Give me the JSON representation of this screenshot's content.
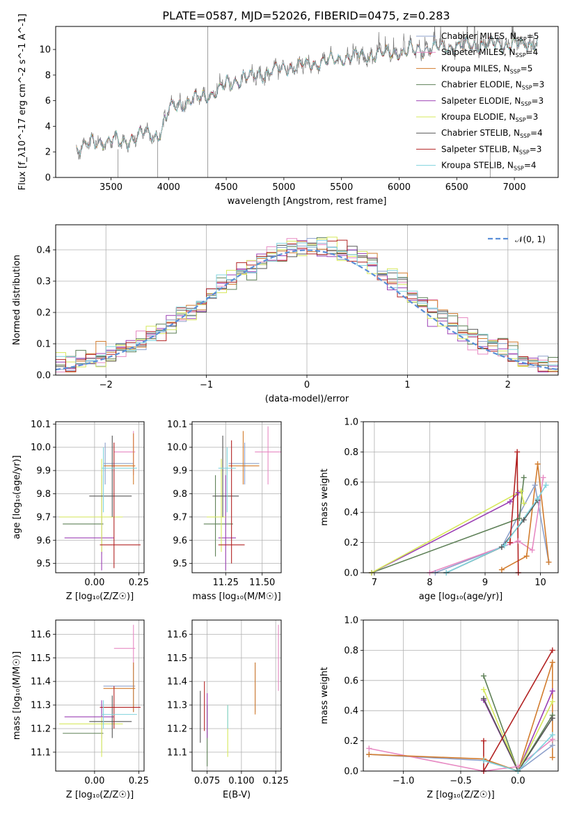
{
  "page_title": "PLATE=0587, MJD=52026, FIBERID=0475, z=0.283",
  "colors": {
    "Chabrier MILES": "#8da0cb",
    "Salpeter MILES": "#e78ac3",
    "Kroupa MILES": "#d27c2e",
    "Chabrier ELODIE": "#5e8057",
    "Salpeter ELODIE": "#9b3fb4",
    "Kroupa ELODIE": "#d6e85a",
    "Chabrier STELIB": "#555555",
    "Salpeter STELIB": "#b22222",
    "Kroupa STELIB": "#7fd3dd",
    "data": "#777777",
    "normal": "#5b8fd8"
  },
  "chart_data": [
    {
      "id": "spectrum",
      "type": "line",
      "title": "PLATE=0587, MJD=52026, FIBERID=0475, z=0.283",
      "xlabel": "wavelength [Angstrom, rest frame]",
      "ylabel": "Flux [f_λ10^-17 erg cm^-2 s^-1 A^-1]",
      "xlim": [
        3020,
        7380
      ],
      "ylim": [
        0,
        11.8
      ],
      "xticks": [
        3500,
        4000,
        4500,
        5000,
        5500,
        6000,
        6500,
        7000
      ],
      "yticks": [
        0,
        2,
        4,
        6,
        8,
        10
      ],
      "legend_position": "right",
      "legend": [
        {
          "name": "Chabrier MILES",
          "nssp": "5"
        },
        {
          "name": "Salpeter MILES",
          "nssp": "4"
        },
        {
          "name": "Kroupa MILES",
          "nssp": "5"
        },
        {
          "name": "Chabrier ELODIE",
          "nssp": "3"
        },
        {
          "name": "Salpeter ELODIE",
          "nssp": "3"
        },
        {
          "name": "Kroupa ELODIE",
          "nssp": "3"
        },
        {
          "name": "Chabrier STELIB",
          "nssp": "4"
        },
        {
          "name": "Salpeter STELIB",
          "nssp": "3"
        },
        {
          "name": "Kroupa STELIB",
          "nssp": "4"
        }
      ],
      "continuum": [
        [
          3200,
          2.2
        ],
        [
          3300,
          2.6
        ],
        [
          3400,
          2.8
        ],
        [
          3500,
          2.9
        ],
        [
          3600,
          2.8
        ],
        [
          3700,
          3.1
        ],
        [
          3800,
          3.4
        ],
        [
          3900,
          3.2
        ],
        [
          3950,
          4.0
        ],
        [
          4000,
          5.3
        ],
        [
          4100,
          5.8
        ],
        [
          4200,
          6.0
        ],
        [
          4300,
          6.3
        ],
        [
          4400,
          6.7
        ],
        [
          4500,
          7.3
        ],
        [
          4600,
          7.6
        ],
        [
          4700,
          7.9
        ],
        [
          4800,
          8.1
        ],
        [
          4900,
          8.3
        ],
        [
          5000,
          8.5
        ],
        [
          5100,
          8.7
        ],
        [
          5200,
          8.8
        ],
        [
          5300,
          9.0
        ],
        [
          5400,
          9.1
        ],
        [
          5500,
          9.3
        ],
        [
          5600,
          9.4
        ],
        [
          5700,
          9.5
        ],
        [
          5800,
          9.6
        ],
        [
          5900,
          9.7
        ],
        [
          6000,
          9.8
        ],
        [
          6200,
          10.0
        ],
        [
          6400,
          10.2
        ],
        [
          6600,
          10.3
        ],
        [
          6800,
          10.4
        ],
        [
          7000,
          10.4
        ],
        [
          7200,
          10.5
        ]
      ]
    },
    {
      "id": "residuals",
      "type": "bar",
      "xlabel": "(data-model)/error",
      "ylabel": "Normed distribution",
      "xlim": [
        -2.5,
        2.5
      ],
      "ylim": [
        0,
        0.48
      ],
      "xticks": [
        -2,
        -1,
        0,
        1,
        2
      ],
      "yticks": [
        0.0,
        0.1,
        0.2,
        0.3,
        0.4
      ],
      "legend": [
        "𝒩(0, 1)"
      ],
      "legend_position": "top-right",
      "bin_width": 0.1
    },
    {
      "id": "age-vs-Z",
      "type": "scatter",
      "xlabel": "Z [log₁₀(Z/Z☉)]",
      "ylabel": "age [log₁₀(age/yr)]",
      "xlim": [
        -0.22,
        0.28
      ],
      "ylim": [
        9.46,
        10.11
      ],
      "xticks": [
        0.0,
        0.25
      ],
      "yticks": [
        9.5,
        9.6,
        9.7,
        9.8,
        9.9,
        10.0,
        10.1
      ],
      "points": [
        {
          "m": "Chabrier MILES",
          "x": 0.06,
          "xe": [
            0.05,
            0.22
          ],
          "y": 9.93,
          "ye": [
            9.84,
            10.02
          ]
        },
        {
          "m": "Salpeter MILES",
          "x": 0.22,
          "xe": [
            0.11,
            0.23
          ],
          "y": 9.98,
          "ye": [
            9.88,
            10.07
          ]
        },
        {
          "m": "Kroupa MILES",
          "x": 0.22,
          "xe": [
            0.05,
            0.23
          ],
          "y": 9.92,
          "ye": [
            9.84,
            10.06
          ]
        },
        {
          "m": "Chabrier ELODIE",
          "x": 0.04,
          "xe": [
            -0.18,
            0.05
          ],
          "y": 9.67,
          "ye": [
            9.54,
            9.88
          ]
        },
        {
          "m": "Salpeter ELODIE",
          "x": 0.04,
          "xe": [
            -0.17,
            0.11
          ],
          "y": 9.61,
          "ye": [
            9.47,
            9.9
          ]
        },
        {
          "m": "Kroupa ELODIE",
          "x": 0.04,
          "xe": [
            -0.2,
            0.16
          ],
          "y": 9.7,
          "ye": [
            9.55,
            9.95
          ]
        },
        {
          "m": "Chabrier STELIB",
          "x": 0.1,
          "xe": [
            -0.03,
            0.21
          ],
          "y": 9.79,
          "ye": [
            9.7,
            10.05
          ]
        },
        {
          "m": "Salpeter STELIB",
          "x": 0.11,
          "xe": [
            0.03,
            0.26
          ],
          "y": 9.58,
          "ye": [
            9.48,
            10.02
          ]
        },
        {
          "m": "Kroupa STELIB",
          "x": 0.05,
          "xe": [
            0.04,
            0.24
          ],
          "y": 9.91,
          "ye": [
            9.72,
            10.0
          ]
        }
      ]
    },
    {
      "id": "age-vs-mass",
      "type": "scatter",
      "xlabel": "mass [log₁₀(M/M☉)]",
      "ylabel": "",
      "xlim": [
        11.02,
        11.63
      ],
      "ylim": [
        9.46,
        10.11
      ],
      "xticks": [
        11.25,
        11.5
      ],
      "yticks": [
        9.5,
        9.6,
        9.7,
        9.8,
        9.9,
        10.0,
        10.1
      ],
      "points": [
        {
          "m": "Chabrier MILES",
          "x": 11.38,
          "xe": [
            11.27,
            11.48
          ],
          "y": 9.93,
          "ye": [
            9.84,
            10.02
          ]
        },
        {
          "m": "Salpeter MILES",
          "x": 11.54,
          "xe": [
            11.45,
            11.63
          ],
          "y": 9.98,
          "ye": [
            9.84,
            10.09
          ]
        },
        {
          "m": "Kroupa MILES",
          "x": 11.37,
          "xe": [
            11.27,
            11.48
          ],
          "y": 9.92,
          "ye": [
            9.84,
            10.07
          ]
        },
        {
          "m": "Chabrier ELODIE",
          "x": 11.18,
          "xe": [
            11.1,
            11.3
          ],
          "y": 9.67,
          "ye": [
            9.53,
            9.88
          ]
        },
        {
          "m": "Salpeter ELODIE",
          "x": 11.25,
          "xe": [
            11.2,
            11.32
          ],
          "y": 9.61,
          "ye": [
            9.47,
            9.88
          ]
        },
        {
          "m": "Kroupa ELODIE",
          "x": 11.22,
          "xe": [
            11.12,
            11.25
          ],
          "y": 9.7,
          "ye": [
            9.55,
            9.95
          ]
        },
        {
          "m": "Chabrier STELIB",
          "x": 11.23,
          "xe": [
            11.16,
            11.34
          ],
          "y": 9.79,
          "ye": [
            9.7,
            10.05
          ]
        },
        {
          "m": "Salpeter STELIB",
          "x": 11.29,
          "xe": [
            11.2,
            11.38
          ],
          "y": 9.58,
          "ye": [
            9.5,
            10.03
          ]
        },
        {
          "m": "Kroupa STELIB",
          "x": 11.26,
          "xe": [
            11.2,
            11.32
          ],
          "y": 9.91,
          "ye": [
            9.72,
            10.0
          ]
        }
      ]
    },
    {
      "id": "weight-vs-age",
      "type": "line",
      "xlabel": "age [log₁₀(age/yr)]",
      "ylabel": "mass weight",
      "xlim": [
        6.8,
        10.32
      ],
      "ylim": [
        0,
        1.0
      ],
      "xticks": [
        7,
        8,
        9,
        10
      ],
      "yticks": [
        0.0,
        0.2,
        0.4,
        0.6,
        0.8,
        1.0
      ],
      "series": [
        {
          "m": "Chabrier MILES",
          "x": [
            8.1,
            9.3,
            9.9,
            10.15
          ],
          "y": [
            0.0,
            0.17,
            0.58,
            0.07
          ]
        },
        {
          "m": "Salpeter MILES",
          "x": [
            8.0,
            9.6,
            9.85,
            10.05
          ],
          "y": [
            0.0,
            0.21,
            0.15,
            0.63
          ]
        },
        {
          "m": "Kroupa MILES",
          "x": [
            9.3,
            9.75,
            9.95,
            10.15
          ],
          "y": [
            0.02,
            0.11,
            0.72,
            0.07
          ]
        },
        {
          "m": "Chabrier ELODIE",
          "x": [
            6.95,
            9.62,
            9.7
          ],
          "y": [
            0.0,
            0.36,
            0.63
          ]
        },
        {
          "m": "Salpeter ELODIE",
          "x": [
            6.95,
            9.45,
            9.6
          ],
          "y": [
            0.0,
            0.47,
            0.53
          ]
        },
        {
          "m": "Kroupa ELODIE",
          "x": [
            6.95,
            9.65,
            9.7
          ],
          "y": [
            0.0,
            0.54,
            0.46
          ]
        },
        {
          "m": "Chabrier STELIB",
          "x": [
            8.3,
            9.3,
            9.7,
            9.95
          ],
          "y": [
            0.0,
            0.17,
            0.35,
            0.48
          ]
        },
        {
          "m": "Salpeter STELIB",
          "x": [
            9.45,
            9.58,
            9.6
          ],
          "y": [
            0.2,
            0.8,
            0.0
          ]
        },
        {
          "m": "Kroupa STELIB",
          "x": [
            8.3,
            9.35,
            9.95,
            10.1
          ],
          "y": [
            0.0,
            0.18,
            0.49,
            0.58
          ]
        }
      ]
    },
    {
      "id": "mass-vs-Z",
      "type": "scatter",
      "xlabel": "Z [log₁₀(Z/Z☉)]",
      "ylabel": "mass [log₁₀(M/M☉)]",
      "xlim": [
        -0.22,
        0.28
      ],
      "ylim": [
        11.02,
        11.66
      ],
      "xticks": [
        0.0,
        0.25
      ],
      "yticks": [
        11.1,
        11.2,
        11.3,
        11.4,
        11.5,
        11.6
      ],
      "points": [
        {
          "m": "Chabrier MILES",
          "x": 0.22,
          "xe": [
            0.05,
            0.23
          ],
          "y": 11.38,
          "ye": [
            11.27,
            11.48
          ]
        },
        {
          "m": "Salpeter MILES",
          "x": 0.22,
          "xe": [
            0.11,
            0.23
          ],
          "y": 11.54,
          "ye": [
            11.45,
            11.64
          ]
        },
        {
          "m": "Kroupa MILES",
          "x": 0.22,
          "xe": [
            0.05,
            0.23
          ],
          "y": 11.37,
          "ye": [
            11.27,
            11.48
          ]
        },
        {
          "m": "Chabrier ELODIE",
          "x": 0.04,
          "xe": [
            -0.18,
            0.05
          ],
          "y": 11.18,
          "ye": [
            11.1,
            11.3
          ]
        },
        {
          "m": "Salpeter ELODIE",
          "x": 0.04,
          "xe": [
            -0.17,
            0.11
          ],
          "y": 11.25,
          "ye": [
            11.16,
            11.32
          ]
        },
        {
          "m": "Kroupa ELODIE",
          "x": 0.04,
          "xe": [
            -0.2,
            0.16
          ],
          "y": 11.22,
          "ye": [
            11.08,
            11.25
          ]
        },
        {
          "m": "Chabrier STELIB",
          "x": 0.1,
          "xe": [
            -0.03,
            0.21
          ],
          "y": 11.23,
          "ye": [
            11.16,
            11.34
          ]
        },
        {
          "m": "Salpeter STELIB",
          "x": 0.11,
          "xe": [
            0.03,
            0.26
          ],
          "y": 11.29,
          "ye": [
            11.2,
            11.38
          ]
        },
        {
          "m": "Kroupa STELIB",
          "x": 0.05,
          "xe": [
            0.04,
            0.24
          ],
          "y": 11.26,
          "ye": [
            11.2,
            11.32
          ]
        }
      ]
    },
    {
      "id": "mass-vs-EBV",
      "type": "scatter",
      "xlabel": "E(B-V)",
      "ylabel": "",
      "xlim": [
        0.064,
        0.129
      ],
      "ylim": [
        11.02,
        11.66
      ],
      "xticks": [
        0.075,
        0.1,
        0.125
      ],
      "yticks": [
        11.1,
        11.2,
        11.3,
        11.4,
        11.5,
        11.6
      ],
      "points": [
        {
          "m": "Chabrier MILES",
          "x": 0.11,
          "y": 11.38,
          "ye": [
            11.27,
            11.48
          ]
        },
        {
          "m": "Salpeter MILES",
          "x": 0.127,
          "y": 11.54,
          "ye": [
            11.36,
            11.64
          ]
        },
        {
          "m": "Kroupa MILES",
          "x": 0.11,
          "y": 11.37,
          "ye": [
            11.26,
            11.48
          ]
        },
        {
          "m": "Chabrier ELODIE",
          "x": 0.075,
          "y": 11.18,
          "ye": [
            11.04,
            11.3
          ]
        },
        {
          "m": "Salpeter ELODIE",
          "x": 0.075,
          "y": 11.25,
          "ye": [
            11.16,
            11.35
          ]
        },
        {
          "m": "Kroupa ELODIE",
          "x": 0.09,
          "y": 11.22,
          "ye": [
            11.08,
            11.3
          ]
        },
        {
          "m": "Chabrier STELIB",
          "x": 0.07,
          "y": 11.23,
          "ye": [
            11.14,
            11.36
          ]
        },
        {
          "m": "Salpeter STELIB",
          "x": 0.073,
          "y": 11.29,
          "ye": [
            11.19,
            11.4
          ]
        },
        {
          "m": "Kroupa STELIB",
          "x": 0.09,
          "y": 11.26,
          "ye": [
            11.2,
            11.3
          ]
        }
      ]
    },
    {
      "id": "weight-vs-Z",
      "type": "line",
      "xlabel": "Z [log₁₀(Z/Z☉)]",
      "ylabel": "mass weight",
      "xlim": [
        -1.35,
        0.35
      ],
      "ylim": [
        0,
        1.0
      ],
      "xticks": [
        -1.0,
        -0.5,
        0.0
      ],
      "yticks": [
        0.0,
        0.2,
        0.4,
        0.6,
        0.8,
        1.0
      ],
      "series": [
        {
          "m": "Chabrier MILES",
          "x": [
            -1.3,
            -0.3,
            0.0,
            0.3
          ],
          "y": [
            0.11,
            0.07,
            0.0,
            0.17
          ]
        },
        {
          "m": "Salpeter MILES",
          "x": [
            -1.3,
            -0.3,
            0.0,
            0.3
          ],
          "y": [
            0.15,
            0.0,
            0.03,
            0.21
          ]
        },
        {
          "m": "Kroupa MILES",
          "x": [
            -1.3,
            -0.3,
            0.0,
            0.3,
            0.3
          ],
          "y": [
            0.11,
            0.08,
            0.0,
            0.72,
            0.09
          ]
        },
        {
          "m": "Chabrier ELODIE",
          "x": [
            -0.3,
            0.0,
            0.3
          ],
          "y": [
            0.63,
            0.0,
            0.37
          ]
        },
        {
          "m": "Salpeter ELODIE",
          "x": [
            -0.3,
            0.0,
            0.3
          ],
          "y": [
            0.47,
            0.0,
            0.53
          ]
        },
        {
          "m": "Kroupa ELODIE",
          "x": [
            -0.3,
            0.0,
            0.3
          ],
          "y": [
            0.54,
            0.0,
            0.46
          ]
        },
        {
          "m": "Chabrier STELIB",
          "x": [
            -0.3,
            0.0,
            0.3
          ],
          "y": [
            0.48,
            0.0,
            0.35
          ]
        },
        {
          "m": "Salpeter STELIB",
          "x": [
            -0.3,
            -0.3,
            0.3
          ],
          "y": [
            0.2,
            0.0,
            0.8
          ]
        },
        {
          "m": "Kroupa STELIB",
          "x": [
            -0.3,
            0.0,
            0.3
          ],
          "y": [
            0.07,
            0.0,
            0.24
          ]
        }
      ]
    }
  ]
}
